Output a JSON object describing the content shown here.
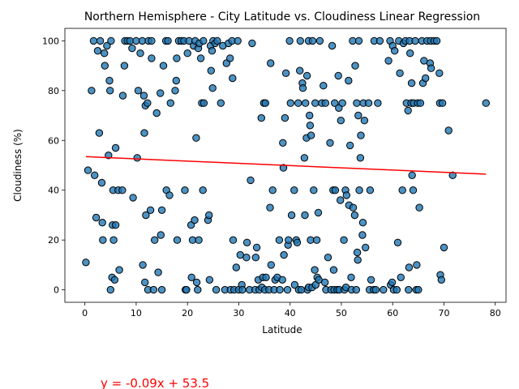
{
  "chart_data": {
    "type": "scatter",
    "title": "Northern Hemisphere - City Latitude vs. Cloudiness Linear Regression",
    "xlabel": "Latitude",
    "ylabel": "Cloudiness (%)",
    "xlim": [
      -3.9,
      82.1
    ],
    "ylim": [
      -5,
      105
    ],
    "xticks": [
      0,
      10,
      20,
      30,
      40,
      50,
      60,
      70,
      80
    ],
    "yticks": [
      0,
      20,
      40,
      60,
      80,
      100
    ],
    "grid": false,
    "legend": "none",
    "point_color": "#1f77b4",
    "line_color": "#ff0000",
    "regression": {
      "slope": -0.09,
      "intercept": 53.5,
      "x_range": [
        0.2,
        78.2
      ]
    },
    "equation": "y = -0.09x + 53.5",
    "points": [
      [
        0.2,
        11
      ],
      [
        0.6,
        48
      ],
      [
        1.3,
        80
      ],
      [
        1.7,
        100
      ],
      [
        1.9,
        46
      ],
      [
        2.2,
        29
      ],
      [
        2.5,
        96
      ],
      [
        2.8,
        63
      ],
      [
        3.0,
        100
      ],
      [
        3.3,
        43
      ],
      [
        3.4,
        27
      ],
      [
        3.5,
        20
      ],
      [
        3.8,
        95
      ],
      [
        3.9,
        90
      ],
      [
        4.3,
        98
      ],
      [
        4.6,
        54
      ],
      [
        4.8,
        84
      ],
      [
        4.9,
        80
      ],
      [
        5.0,
        0
      ],
      [
        5.1,
        100
      ],
      [
        5.3,
        5
      ],
      [
        5.4,
        26
      ],
      [
        5.5,
        40
      ],
      [
        5.6,
        20
      ],
      [
        5.8,
        4
      ],
      [
        6.0,
        26
      ],
      [
        6.0,
        57
      ],
      [
        6.5,
        40
      ],
      [
        6.7,
        8
      ],
      [
        7.3,
        40
      ],
      [
        7.4,
        78
      ],
      [
        7.7,
        90
      ],
      [
        7.8,
        100
      ],
      [
        8.3,
        100
      ],
      [
        8.8,
        100
      ],
      [
        9.2,
        97
      ],
      [
        9.4,
        37
      ],
      [
        10.0,
        100
      ],
      [
        10.2,
        53
      ],
      [
        10.4,
        80
      ],
      [
        10.8,
        95
      ],
      [
        11.2,
        100
      ],
      [
        11.3,
        10
      ],
      [
        11.5,
        78
      ],
      [
        11.6,
        63
      ],
      [
        11.7,
        3
      ],
      [
        11.8,
        74
      ],
      [
        11.9,
        30
      ],
      [
        12.2,
        75
      ],
      [
        12.3,
        0
      ],
      [
        12.4,
        100
      ],
      [
        12.8,
        32
      ],
      [
        13.0,
        93
      ],
      [
        13.0,
        100
      ],
      [
        13.4,
        0
      ],
      [
        13.6,
        20
      ],
      [
        14.0,
        71
      ],
      [
        14.3,
        7
      ],
      [
        14.7,
        79
      ],
      [
        14.8,
        22
      ],
      [
        15.0,
        32
      ],
      [
        15.0,
        0
      ],
      [
        15.3,
        90
      ],
      [
        15.8,
        100
      ],
      [
        15.9,
        40
      ],
      [
        16.2,
        100
      ],
      [
        16.5,
        38
      ],
      [
        16.7,
        75
      ],
      [
        17.6,
        80
      ],
      [
        17.8,
        84
      ],
      [
        17.9,
        93
      ],
      [
        18.0,
        20
      ],
      [
        18.3,
        100
      ],
      [
        18.8,
        100
      ],
      [
        19.3,
        100
      ],
      [
        19.5,
        40
      ],
      [
        19.6,
        0
      ],
      [
        19.8,
        0
      ],
      [
        20.0,
        95
      ],
      [
        20.3,
        100
      ],
      [
        20.7,
        26
      ],
      [
        20.8,
        5
      ],
      [
        21.0,
        20
      ],
      [
        21.2,
        98
      ],
      [
        21.4,
        28
      ],
      [
        21.5,
        100
      ],
      [
        21.7,
        61
      ],
      [
        21.8,
        3
      ],
      [
        22.0,
        0
      ],
      [
        22.1,
        97
      ],
      [
        22.2,
        20
      ],
      [
        22.3,
        99
      ],
      [
        22.6,
        93
      ],
      [
        22.8,
        75
      ],
      [
        23.0,
        40
      ],
      [
        23.1,
        100
      ],
      [
        23.2,
        75
      ],
      [
        24.0,
        28
      ],
      [
        24.2,
        30
      ],
      [
        24.3,
        4
      ],
      [
        24.5,
        98
      ],
      [
        24.6,
        88
      ],
      [
        24.8,
        96
      ],
      [
        24.9,
        81
      ],
      [
        25.0,
        100
      ],
      [
        25.4,
        99
      ],
      [
        25.6,
        0
      ],
      [
        25.8,
        100
      ],
      [
        26.5,
        75
      ],
      [
        26.9,
        98
      ],
      [
        27.3,
        0
      ],
      [
        27.6,
        91
      ],
      [
        28.0,
        99
      ],
      [
        28.3,
        93
      ],
      [
        28.4,
        0
      ],
      [
        28.7,
        100
      ],
      [
        28.8,
        85
      ],
      [
        28.9,
        20
      ],
      [
        29.1,
        0
      ],
      [
        29.5,
        9
      ],
      [
        29.8,
        100
      ],
      [
        30.0,
        0
      ],
      [
        30.3,
        14
      ],
      [
        30.6,
        2
      ],
      [
        30.7,
        0
      ],
      [
        31.5,
        13
      ],
      [
        31.6,
        19
      ],
      [
        32.1,
        0
      ],
      [
        32.3,
        44
      ],
      [
        32.6,
        99
      ],
      [
        33.2,
        0
      ],
      [
        33.3,
        13
      ],
      [
        33.5,
        17
      ],
      [
        33.8,
        4
      ],
      [
        34.0,
        0
      ],
      [
        34.4,
        69
      ],
      [
        34.5,
        1
      ],
      [
        34.7,
        5
      ],
      [
        34.9,
        75
      ],
      [
        35.1,
        0
      ],
      [
        35.2,
        75
      ],
      [
        35.3,
        5
      ],
      [
        35.9,
        0
      ],
      [
        36.1,
        33
      ],
      [
        36.2,
        91
      ],
      [
        36.3,
        10
      ],
      [
        36.6,
        40
      ],
      [
        36.9,
        0
      ],
      [
        37.1,
        4
      ],
      [
        37.5,
        5
      ],
      [
        37.9,
        20
      ],
      [
        38.0,
        0
      ],
      [
        38.5,
        4
      ],
      [
        38.6,
        59
      ],
      [
        38.7,
        49
      ],
      [
        38.8,
        14
      ],
      [
        39.0,
        69
      ],
      [
        39.2,
        87
      ],
      [
        39.5,
        0
      ],
      [
        39.6,
        18
      ],
      [
        39.7,
        20
      ],
      [
        39.9,
        100
      ],
      [
        40.1,
        75
      ],
      [
        40.3,
        30
      ],
      [
        40.8,
        40
      ],
      [
        40.9,
        2
      ],
      [
        41.2,
        20
      ],
      [
        41.4,
        19
      ],
      [
        41.6,
        75
      ],
      [
        41.7,
        0
      ],
      [
        41.9,
        88
      ],
      [
        42.0,
        100
      ],
      [
        42.2,
        0
      ],
      [
        42.4,
        83
      ],
      [
        42.5,
        81
      ],
      [
        42.8,
        53
      ],
      [
        42.9,
        30
      ],
      [
        43.0,
        75
      ],
      [
        43.2,
        61
      ],
      [
        43.3,
        86
      ],
      [
        43.4,
        0
      ],
      [
        43.6,
        100
      ],
      [
        43.6,
        1
      ],
      [
        43.8,
        70
      ],
      [
        43.9,
        66
      ],
      [
        44.0,
        20
      ],
      [
        44.1,
        62
      ],
      [
        44.3,
        1
      ],
      [
        44.4,
        100
      ],
      [
        44.6,
        40
      ],
      [
        44.8,
        8
      ],
      [
        44.9,
        75
      ],
      [
        45.0,
        2
      ],
      [
        45.2,
        20
      ],
      [
        45.3,
        5
      ],
      [
        45.5,
        31
      ],
      [
        45.6,
        4
      ],
      [
        45.8,
        100
      ],
      [
        46.2,
        75
      ],
      [
        46.5,
        82
      ],
      [
        46.8,
        3
      ],
      [
        46.9,
        75
      ],
      [
        47.0,
        0
      ],
      [
        47.4,
        13
      ],
      [
        47.8,
        59
      ],
      [
        48.0,
        0
      ],
      [
        48.2,
        98
      ],
      [
        48.4,
        40
      ],
      [
        48.5,
        8
      ],
      [
        48.6,
        0
      ],
      [
        48.7,
        75
      ],
      [
        48.8,
        40
      ],
      [
        49.2,
        0
      ],
      [
        49.4,
        86
      ],
      [
        49.5,
        73
      ],
      [
        49.6,
        0
      ],
      [
        49.8,
        36
      ],
      [
        49.9,
        68
      ],
      [
        50.2,
        75
      ],
      [
        50.5,
        20
      ],
      [
        50.6,
        0
      ],
      [
        50.8,
        40
      ],
      [
        50.9,
        1
      ],
      [
        51.0,
        38
      ],
      [
        51.4,
        84
      ],
      [
        51.5,
        34
      ],
      [
        51.7,
        58
      ],
      [
        51.9,
        5
      ],
      [
        52.0,
        0
      ],
      [
        52.2,
        100
      ],
      [
        52.3,
        33
      ],
      [
        52.6,
        30
      ],
      [
        52.7,
        90
      ],
      [
        52.9,
        0
      ],
      [
        53.0,
        75
      ],
      [
        53.1,
        15
      ],
      [
        53.2,
        12
      ],
      [
        53.3,
        70
      ],
      [
        53.4,
        100
      ],
      [
        53.5,
        40
      ],
      [
        53.7,
        53
      ],
      [
        53.8,
        62
      ],
      [
        54.1,
        22
      ],
      [
        54.2,
        27
      ],
      [
        54.3,
        75
      ],
      [
        54.5,
        68
      ],
      [
        54.7,
        17
      ],
      [
        55.3,
        75
      ],
      [
        55.5,
        0
      ],
      [
        55.6,
        40
      ],
      [
        55.8,
        4
      ],
      [
        56.3,
        0
      ],
      [
        56.4,
        100
      ],
      [
        56.7,
        0
      ],
      [
        57.1,
        75
      ],
      [
        57.5,
        100
      ],
      [
        58.2,
        0
      ],
      [
        59.2,
        92
      ],
      [
        59.5,
        100
      ],
      [
        59.6,
        2
      ],
      [
        59.9,
        3
      ],
      [
        60.0,
        98
      ],
      [
        60.2,
        0
      ],
      [
        60.4,
        96
      ],
      [
        60.8,
        0
      ],
      [
        61.0,
        19
      ],
      [
        61.2,
        100
      ],
      [
        61.4,
        87
      ],
      [
        61.6,
        5
      ],
      [
        61.9,
        40
      ],
      [
        62.1,
        99
      ],
      [
        62.5,
        100
      ],
      [
        62.7,
        75
      ],
      [
        63.0,
        72
      ],
      [
        63.1,
        0
      ],
      [
        63.2,
        9
      ],
      [
        63.3,
        100
      ],
      [
        63.4,
        95
      ],
      [
        63.6,
        75
      ],
      [
        63.7,
        83
      ],
      [
        63.8,
        46
      ],
      [
        64.0,
        40
      ],
      [
        64.1,
        75
      ],
      [
        64.4,
        100
      ],
      [
        64.6,
        0
      ],
      [
        64.7,
        10
      ],
      [
        64.9,
        75
      ],
      [
        65.0,
        0
      ],
      [
        65.2,
        33
      ],
      [
        65.4,
        75
      ],
      [
        65.7,
        100
      ],
      [
        65.9,
        83
      ],
      [
        66.1,
        92
      ],
      [
        66.4,
        85
      ],
      [
        66.7,
        100
      ],
      [
        67.3,
        91
      ],
      [
        67.4,
        100
      ],
      [
        67.5,
        89
      ],
      [
        68.1,
        100
      ],
      [
        68.6,
        100
      ],
      [
        69.1,
        87
      ],
      [
        69.2,
        75
      ],
      [
        69.3,
        6
      ],
      [
        69.5,
        4
      ],
      [
        69.7,
        75
      ],
      [
        70.0,
        17
      ],
      [
        70.9,
        64
      ],
      [
        71.7,
        46
      ],
      [
        78.2,
        75
      ]
    ]
  }
}
